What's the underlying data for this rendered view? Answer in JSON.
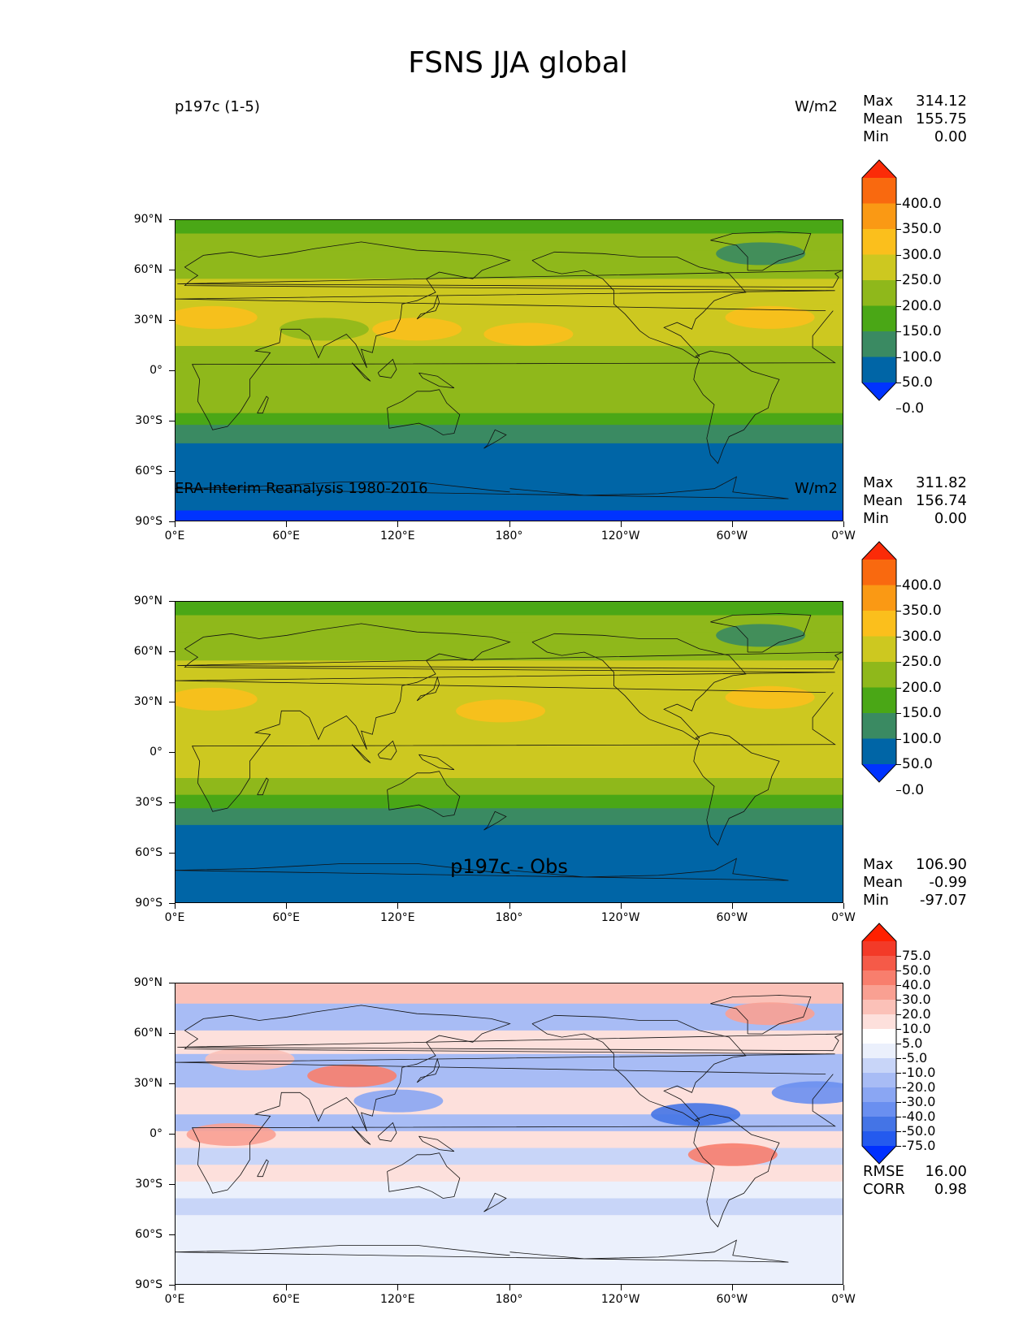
{
  "title": "FSNS JJA global",
  "y_ticks": [
    "90°N",
    "60°N",
    "30°N",
    "0°",
    "30°S",
    "60°S",
    "90°S"
  ],
  "x_ticks": [
    "0°E",
    "60°E",
    "120°E",
    "180°",
    "120°W",
    "60°W",
    "0°W"
  ],
  "chart_data": [
    {
      "type": "heatmap",
      "id": "model",
      "title_left": "p197c (1-5)",
      "title_center": "",
      "units": "W/m2",
      "stats": [
        [
          "Max",
          "314.12"
        ],
        [
          "Mean",
          "155.75"
        ],
        [
          "Min",
          "0.00"
        ]
      ],
      "colorbar": {
        "ticks": [
          "400.0",
          "350.0",
          "300.0",
          "250.0",
          "200.0",
          "150.0",
          "100.0",
          "50.0",
          "0.0"
        ],
        "colors": [
          "#0033ff",
          "#0065a6",
          "#3a8a62",
          "#4aa716",
          "#8fb81b",
          "#cdc820",
          "#fbbf1c",
          "#fa9914",
          "#f9690f",
          "#fb2b08"
        ]
      },
      "field": [
        {
          "lat": [
            90,
            82
          ],
          "value": 100
        },
        {
          "lat": [
            82,
            72
          ],
          "value": 150
        },
        {
          "lat": [
            72,
            55
          ],
          "value": 175
        },
        {
          "lat": [
            55,
            40
          ],
          "value": 210
        },
        {
          "lat": [
            40,
            15
          ],
          "value": 230
        },
        {
          "lat": [
            15,
            5
          ],
          "value": 180
        },
        {
          "lat": [
            5,
            -15
          ],
          "value": 190
        },
        {
          "lat": [
            -15,
            -25
          ],
          "value": 160
        },
        {
          "lat": [
            -25,
            -32
          ],
          "value": 125
        },
        {
          "lat": [
            -32,
            -43
          ],
          "value": 75
        },
        {
          "lat": [
            -43,
            -83
          ],
          "value": 25
        },
        {
          "lat": [
            -83,
            -90
          ],
          "value": -5
        }
      ],
      "blobs": [
        {
          "lon": 20,
          "lat": 32,
          "value": 290
        },
        {
          "lon": 130,
          "lat": 25,
          "value": 265
        },
        {
          "lon": 190,
          "lat": 22,
          "value": 265
        },
        {
          "lon": 320,
          "lat": 32,
          "value": 265
        },
        {
          "lon": 315,
          "lat": 70,
          "value": 75
        },
        {
          "lon": 80,
          "lat": 25,
          "value": 150
        }
      ],
      "rmse": "",
      "corr": ""
    },
    {
      "type": "heatmap",
      "id": "obs",
      "title_left": "ERA-Interim Reanalysis 1980-2016",
      "title_center": "",
      "units": "W/m2",
      "stats": [
        [
          "Max",
          "311.82"
        ],
        [
          "Mean",
          "156.74"
        ],
        [
          "Min",
          "0.00"
        ]
      ],
      "colorbar": {
        "ticks": [
          "400.0",
          "350.0",
          "300.0",
          "250.0",
          "200.0",
          "150.0",
          "100.0",
          "50.0",
          "0.0"
        ],
        "colors": [
          "#0033ff",
          "#0065a6",
          "#3a8a62",
          "#4aa716",
          "#8fb81b",
          "#cdc820",
          "#fbbf1c",
          "#fa9914",
          "#f9690f",
          "#fb2b08"
        ]
      },
      "field": [
        {
          "lat": [
            90,
            82
          ],
          "value": 100
        },
        {
          "lat": [
            82,
            72
          ],
          "value": 150
        },
        {
          "lat": [
            72,
            55
          ],
          "value": 175
        },
        {
          "lat": [
            55,
            40
          ],
          "value": 210
        },
        {
          "lat": [
            40,
            15
          ],
          "value": 230
        },
        {
          "lat": [
            15,
            5
          ],
          "value": 200
        },
        {
          "lat": [
            5,
            -15
          ],
          "value": 210
        },
        {
          "lat": [
            -15,
            -25
          ],
          "value": 175
        },
        {
          "lat": [
            -25,
            -33
          ],
          "value": 130
        },
        {
          "lat": [
            -33,
            -43
          ],
          "value": 75
        },
        {
          "lat": [
            -43,
            -90
          ],
          "value": 25
        }
      ],
      "blobs": [
        {
          "lon": 20,
          "lat": 32,
          "value": 290
        },
        {
          "lon": 175,
          "lat": 25,
          "value": 265
        },
        {
          "lon": 320,
          "lat": 33,
          "value": 265
        },
        {
          "lon": 315,
          "lat": 70,
          "value": 75
        }
      ],
      "rmse": "",
      "corr": ""
    },
    {
      "type": "heatmap",
      "id": "diff",
      "title_left": "",
      "title_center": "p197c - Obs",
      "units": "",
      "stats": [
        [
          "Max",
          "106.90"
        ],
        [
          "Mean",
          "-0.99"
        ],
        [
          "Min",
          "-97.07"
        ]
      ],
      "colorbar": {
        "ticks": [
          "75.0",
          "50.0",
          "40.0",
          "30.0",
          "20.0",
          "10.0",
          "5.0",
          "-5.0",
          "-10.0",
          "-20.0",
          "-30.0",
          "-40.0",
          "-50.0",
          "-75.0"
        ],
        "colors": [
          "#0030ff",
          "#245aee",
          "#4474e6",
          "#6a8ff0",
          "#8aa6f3",
          "#a8bcf5",
          "#c8d5f8",
          "#ebf0fc",
          "#ffffff",
          "#fde0dc",
          "#fbc1b8",
          "#f9a092",
          "#f87e6d",
          "#f55a48",
          "#f33a28",
          "#ff2000"
        ]
      },
      "field": [
        {
          "lat": [
            90,
            78
          ],
          "value": 22
        },
        {
          "lat": [
            78,
            62
          ],
          "value": -12
        },
        {
          "lat": [
            62,
            48
          ],
          "value": 12
        },
        {
          "lat": [
            48,
            28
          ],
          "value": -15
        },
        {
          "lat": [
            28,
            12
          ],
          "value": 12
        },
        {
          "lat": [
            12,
            2
          ],
          "value": -12
        },
        {
          "lat": [
            2,
            -8
          ],
          "value": 15
        },
        {
          "lat": [
            -8,
            -18
          ],
          "value": -8
        },
        {
          "lat": [
            -18,
            -28
          ],
          "value": 12
        },
        {
          "lat": [
            -28,
            -38
          ],
          "value": 0
        },
        {
          "lat": [
            -38,
            -48
          ],
          "value": -8
        },
        {
          "lat": [
            -48,
            -90
          ],
          "value": 0
        }
      ],
      "blobs": [
        {
          "lon": 95,
          "lat": 35,
          "value": 45
        },
        {
          "lon": 40,
          "lat": 45,
          "value": 25
        },
        {
          "lon": 300,
          "lat": -12,
          "value": 45
        },
        {
          "lon": 320,
          "lat": 72,
          "value": 35
        },
        {
          "lon": 30,
          "lat": 0,
          "value": 30
        },
        {
          "lon": 280,
          "lat": 12,
          "value": -45
        },
        {
          "lon": 345,
          "lat": 25,
          "value": -35
        },
        {
          "lon": 120,
          "lat": 20,
          "value": -25
        }
      ],
      "rmse": "16.00",
      "corr": "0.98"
    }
  ],
  "rmse_label": "RMSE",
  "corr_label": "CORR"
}
